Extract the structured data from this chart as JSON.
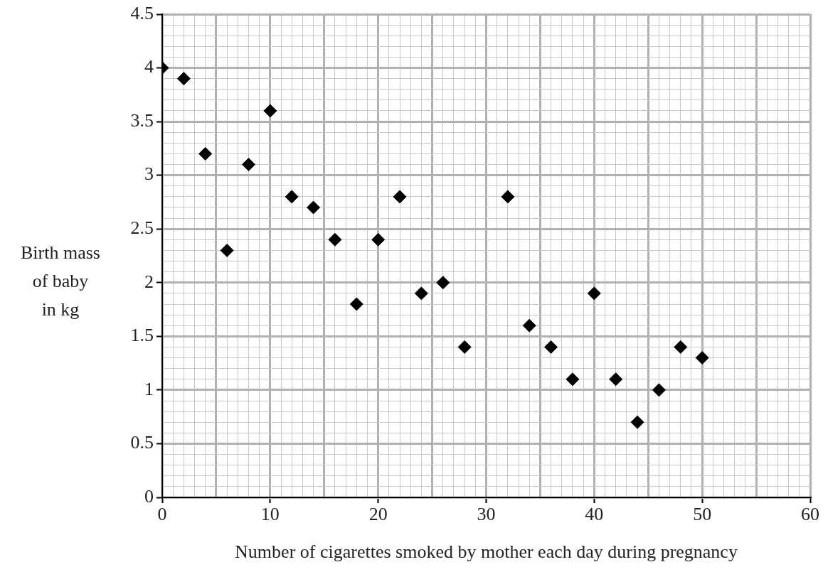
{
  "chart_data": {
    "type": "scatter",
    "xlabel": "Number of cigarettes smoked by mother each day during pregnancy",
    "ylabel": "Birth mass\nof baby\nin kg",
    "x": [
      0,
      2,
      4,
      6,
      8,
      10,
      12,
      14,
      16,
      18,
      20,
      22,
      24,
      26,
      28,
      32,
      34,
      36,
      38,
      40,
      42,
      44,
      46,
      48,
      50
    ],
    "series": [
      {
        "color": "#000000",
        "values": [
          4.0,
          3.9,
          3.2,
          2.3,
          3.1,
          3.6,
          2.8,
          2.7,
          2.4,
          1.8,
          2.4,
          2.8,
          1.9,
          2.0,
          1.4,
          2.8,
          1.6,
          1.4,
          1.1,
          1.9,
          1.1,
          0.7,
          1.0,
          1.4,
          1.3
        ]
      }
    ],
    "marker": "diamond",
    "grid": true,
    "legend": false,
    "xlim": [
      0,
      60
    ],
    "xticks": [
      0,
      {
        "value": 1,
        "label": null
      },
      {
        "value": 2,
        "label": null
      },
      {
        "value": 3,
        "label": null
      },
      {
        "value": 4,
        "label": null
      },
      {
        "value": 5,
        "label": null
      },
      {
        "value": 6,
        "label": null
      },
      {
        "value": 7,
        "label": null
      },
      {
        "value": 8,
        "label": null
      },
      {
        "value": 9,
        "label": null
      },
      10,
      {
        "value": 11,
        "label": null
      },
      {
        "value": 12,
        "label": null
      },
      {
        "value": 13,
        "label": null
      },
      {
        "value": 14,
        "label": null
      },
      {
        "value": 15,
        "label": null
      },
      {
        "value": 16,
        "label": null
      },
      {
        "value": 17,
        "label": null
      },
      {
        "value": 18,
        "label": null
      },
      {
        "value": 19,
        "label": null
      },
      20,
      {
        "value": 21,
        "label": null
      },
      {
        "value": 22,
        "label": null
      },
      {
        "value": 23,
        "label": null
      },
      {
        "value": 24,
        "label": null
      },
      {
        "value": 25,
        "label": null
      },
      {
        "value": 26,
        "label": null
      },
      {
        "value": 27,
        "label": null
      },
      {
        "value": 28,
        "label": null
      },
      {
        "value": 29,
        "label": null
      },
      30,
      {
        "value": 31,
        "label": null
      },
      {
        "value": 32,
        "label": null
      },
      {
        "value": 33,
        "label": null
      },
      {
        "value": 34,
        "label": null
      },
      {
        "value": 35,
        "label": null
      },
      {
        "value": 36,
        "label": null
      },
      {
        "value": 37,
        "label": null
      },
      {
        "value": 38,
        "label": null
      },
      {
        "value": 39,
        "label": null
      },
      40,
      {
        "value": 41,
        "label": null
      },
      {
        "value": 42,
        "label": null
      },
      {
        "value": 43,
        "label": null
      },
      {
        "value": 44,
        "label": null
      },
      {
        "value": 45,
        "label": null
      },
      {
        "value": 46,
        "label": null
      },
      {
        "value": 47,
        "label": null
      },
      {
        "value": 48,
        "label": null
      },
      {
        "value": 49,
        "label": null
      },
      50,
      {
        "value": 51,
        "label": null
      },
      {
        "value": 52,
        "label": null
      },
      {
        "value": 53,
        "label": null
      },
      {
        "value": 54,
        "label": null
      },
      {
        "value": 55,
        "label": null
      },
      {
        "value": 56,
        "label": null
      },
      {
        "value": 57,
        "label": null
      },
      {
        "value": 58,
        "label": null
      },
      {
        "value": 59,
        "label": null
      },
      60
    ],
    "ylim": [
      0,
      4.5
    ],
    "yticks": [
      0,
      {
        "value": 0.1,
        "label": null
      },
      {
        "value": 0.2,
        "label": null
      },
      {
        "value": 0.3,
        "label": null
      },
      {
        "value": 0.4,
        "label": null
      },
      0.5,
      {
        "value": 0.6,
        "label": null
      },
      {
        "value": 0.7,
        "label": null
      },
      {
        "value": 0.8,
        "label": null
      },
      {
        "value": 0.9,
        "label": null
      },
      1,
      {
        "value": 1.1,
        "label": null
      },
      {
        "value": 1.2,
        "label": null
      },
      {
        "value": 1.3,
        "label": null
      },
      {
        "value": 1.4,
        "label": null
      },
      1.5,
      {
        "value": 1.6,
        "label": null
      },
      {
        "value": 1.7,
        "label": null
      },
      {
        "value": 1.8,
        "label": null
      },
      {
        "value": 1.9,
        "label": null
      },
      2,
      {
        "value": 2.1,
        "label": null
      },
      {
        "value": 2.2,
        "label": null
      },
      {
        "value": 2.3,
        "label": null
      },
      {
        "value": 2.4,
        "label": null
      },
      2.5,
      {
        "value": 2.6,
        "label": null
      },
      {
        "value": 2.7,
        "label": null
      },
      {
        "value": 2.8,
        "label": null
      },
      {
        "value": 2.9,
        "label": null
      },
      3,
      {
        "value": 3.1,
        "label": null
      },
      {
        "value": 3.2,
        "label": null
      },
      {
        "value": 3.3,
        "label": null
      },
      {
        "value": 3.4,
        "label": null
      },
      3.5,
      {
        "value": 3.6,
        "label": null
      },
      {
        "value": 3.7,
        "label": null
      },
      {
        "value": 3.8,
        "label": null
      },
      {
        "value": 3.9,
        "label": null
      },
      4,
      {
        "value": 4.1,
        "label": null
      },
      {
        "value": 4.2,
        "label": null
      },
      {
        "value": 4.3,
        "label": null
      },
      {
        "value": 4.4,
        "label": null
      },
      4.5
    ]
  }
}
